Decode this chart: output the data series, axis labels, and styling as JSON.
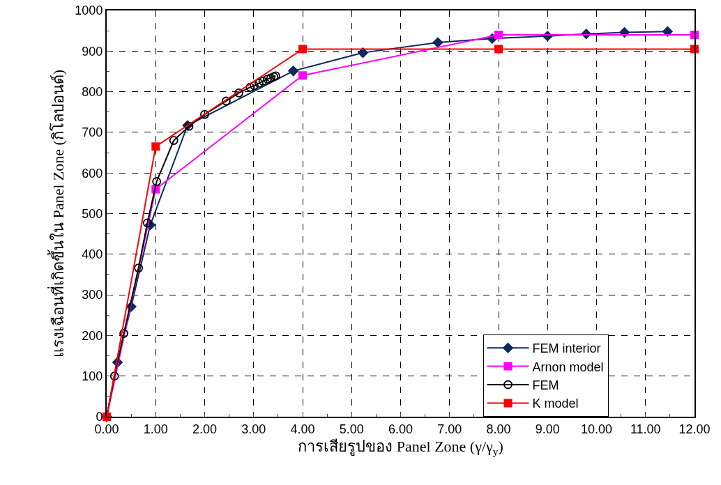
{
  "chart_data": {
    "type": "line",
    "xlabel": "การเสียรูปของ Panel Zone (γ/γ$_{y}$)",
    "ylabel": "แรงเฉือนที่เกิดขึ้นใน Panel Zone (กิโลปอนด์)",
    "xlim": [
      0,
      12
    ],
    "xticks": [
      {
        "value": 0,
        "label": "0.00"
      },
      {
        "value": 1,
        "label": "1.00"
      },
      {
        "value": 2,
        "label": "2.00"
      },
      {
        "value": 3,
        "label": "3.00"
      },
      {
        "value": 4,
        "label": "4.00"
      },
      {
        "value": 5,
        "label": "5.00"
      },
      {
        "value": 6,
        "label": "6.00"
      },
      {
        "value": 7,
        "label": "7.00"
      },
      {
        "value": 8,
        "label": "8.00"
      },
      {
        "value": 9,
        "label": "9.00"
      },
      {
        "value": 10,
        "label": "10.00"
      },
      {
        "value": 11,
        "label": "11.00"
      },
      {
        "value": 12,
        "label": "12.00"
      }
    ],
    "ylim": [
      0,
      1000
    ],
    "yticks": [
      0,
      100,
      200,
      300,
      400,
      500,
      600,
      700,
      800,
      900,
      1000
    ],
    "grid": true,
    "legend": "bottom right",
    "line_style": "solid",
    "series": [
      {
        "name": "FEM interior",
        "color": "#0b2a5e",
        "marker": "diamond",
        "x": [
          0,
          0.22,
          0.5,
          0.89,
          1.65,
          3.81,
          5.23,
          6.76,
          7.87,
          9.0,
          9.79,
          10.57,
          11.45
        ],
        "values": [
          0,
          134,
          271,
          472,
          717,
          851,
          896,
          921,
          931,
          937,
          942,
          946,
          948
        ]
      },
      {
        "name": "Arnon model",
        "color": "#ff00ff",
        "marker": "square",
        "x": [
          0,
          1,
          4,
          8,
          12
        ],
        "values": [
          0,
          560,
          840,
          940,
          940
        ]
      },
      {
        "name": "FEM",
        "color": "#000000",
        "marker": "circle",
        "x": [
          0,
          0.16,
          0.35,
          0.65,
          0.83,
          1.02,
          1.37,
          1.68,
          2.0,
          2.44,
          2.7,
          2.93,
          3.01,
          3.11,
          3.19,
          3.28,
          3.35,
          3.41,
          3.45
        ],
        "values": [
          0,
          100,
          205,
          366,
          477,
          579,
          680,
          715,
          744,
          777,
          797,
          811,
          815,
          821,
          826,
          831,
          834,
          837,
          839
        ]
      },
      {
        "name": "K model",
        "color": "#ff0000",
        "marker": "square",
        "x": [
          0,
          1,
          4,
          8,
          12
        ],
        "values": [
          0,
          665,
          905,
          905,
          905
        ]
      }
    ]
  }
}
